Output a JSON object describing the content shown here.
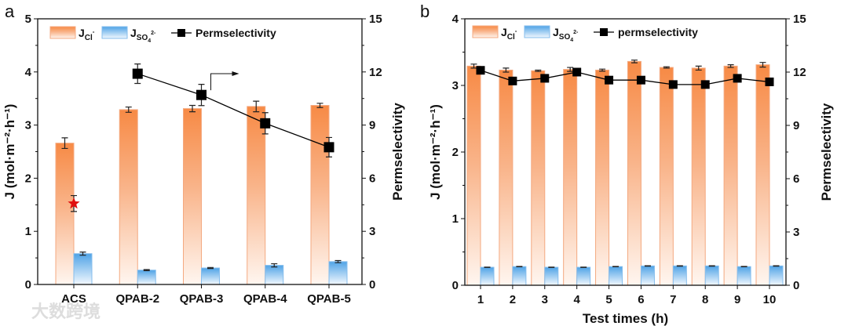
{
  "watermark": "大数跨境",
  "colors": {
    "cl": "#f78a45",
    "cl_edge": "#f4a980",
    "so4": "#4fa3e6",
    "so4_edge": "#86bdec",
    "line": "#000000",
    "star": "#e01010"
  },
  "chart_data": [
    {
      "panel_label": "a",
      "type": "bar+line",
      "categories": [
        "ACS",
        "QPAB-2",
        "QPAB-3",
        "QPAB-4",
        "QPAB-5"
      ],
      "ylabel": "J (mol·m⁻²·h⁻¹)",
      "y2label": "Permselectivity",
      "xlabel": "",
      "ylim": [
        0,
        5
      ],
      "yticks": [
        0,
        1,
        2,
        3,
        4,
        5
      ],
      "y2lim": [
        0,
        15
      ],
      "y2ticks": [
        0,
        3,
        6,
        9,
        12,
        15
      ],
      "legend": {
        "cl": {
          "main": "J",
          "sub": "Cl",
          "sup": "-"
        },
        "so4": {
          "main": "J",
          "sub": "SO",
          "sub2": "4",
          "sup": "2-"
        },
        "line": "Permselectivity"
      },
      "legend_position": "top-left",
      "series": [
        {
          "name": "J_Cl-",
          "values": [
            2.66,
            3.29,
            3.31,
            3.35,
            3.37
          ],
          "errors": [
            0.1,
            0.05,
            0.06,
            0.1,
            0.04
          ]
        },
        {
          "name": "J_SO4 2-",
          "values": [
            0.58,
            0.27,
            0.31,
            0.36,
            0.43
          ],
          "errors": [
            0.03,
            0.01,
            0.01,
            0.03,
            0.02
          ]
        },
        {
          "name": "Permselectivity",
          "axis": "right",
          "values": [
            null,
            11.9,
            10.7,
            9.1,
            7.75
          ],
          "errors": [
            null,
            0.55,
            0.6,
            0.6,
            0.55
          ]
        }
      ],
      "star": {
        "category": "ACS",
        "value": 4.57,
        "error": 0.45,
        "axis": "right"
      },
      "annotation": "arrow pointing to right axis"
    },
    {
      "panel_label": "b",
      "type": "bar+line",
      "categories": [
        "1",
        "2",
        "3",
        "4",
        "5",
        "6",
        "7",
        "8",
        "9",
        "10"
      ],
      "ylabel": "J (mol·m⁻²·h⁻¹)",
      "y2label": "Permselectivity",
      "xlabel": "Test times (h)",
      "ylim": [
        0,
        4
      ],
      "yticks": [
        0,
        1,
        2,
        3,
        4
      ],
      "y2lim": [
        0,
        15
      ],
      "y2ticks": [
        0,
        3,
        6,
        9,
        12,
        15
      ],
      "legend": {
        "cl": {
          "main": "J",
          "sub": "Cl",
          "sup": "-"
        },
        "so4": {
          "main": "J",
          "sub": "SO",
          "sub2": "4",
          "sup": "2-"
        },
        "line": "permselectivity"
      },
      "legend_position": "top-left",
      "series": [
        {
          "name": "J_Cl-",
          "values": [
            3.29,
            3.23,
            3.22,
            3.24,
            3.23,
            3.36,
            3.27,
            3.26,
            3.29,
            3.31
          ],
          "errors": [
            0.03,
            0.03,
            0.01,
            0.03,
            0.015,
            0.02,
            0.01,
            0.03,
            0.02,
            0.035
          ]
        },
        {
          "name": "J_SO4 2-",
          "values": [
            0.27,
            0.28,
            0.27,
            0.27,
            0.28,
            0.29,
            0.29,
            0.29,
            0.28,
            0.29
          ],
          "errors": [
            0.003,
            0.003,
            0.003,
            0.003,
            0.003,
            0.003,
            0.003,
            0.003,
            0.003,
            0.003
          ]
        },
        {
          "name": "permselectivity",
          "axis": "right",
          "values": [
            12.1,
            11.5,
            11.65,
            12.0,
            11.55,
            11.55,
            11.3,
            11.3,
            11.65,
            11.45
          ],
          "errors": [
            null,
            null,
            null,
            null,
            null,
            null,
            null,
            null,
            null,
            null
          ]
        }
      ]
    }
  ]
}
